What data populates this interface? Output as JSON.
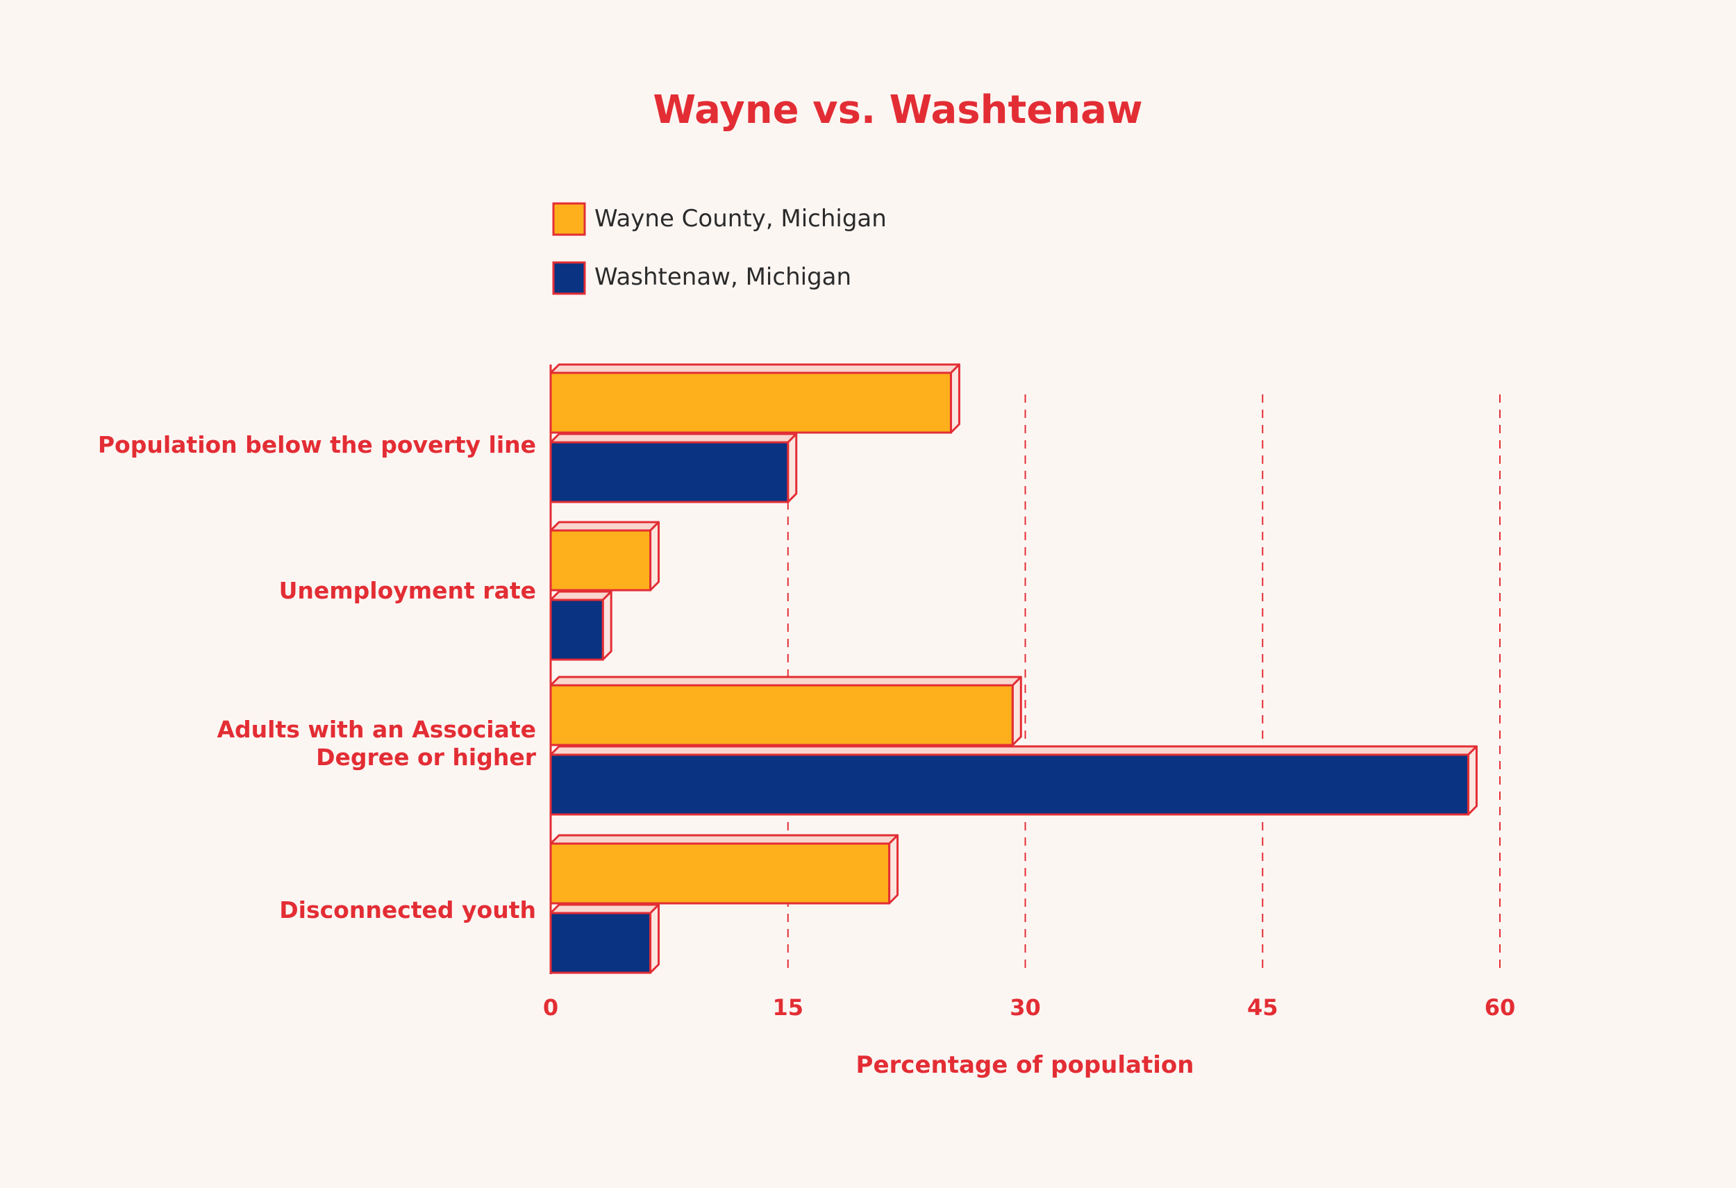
{
  "colors": {
    "background": "#fcf6f3",
    "accent": "#e32d34",
    "wayne": "#fdb01b",
    "washtenaw": "#0a3381",
    "bar_top": "#f9d7cf",
    "bar_side": "#fbe5df",
    "legend_text": "#2b2b2b"
  },
  "chart_data": {
    "type": "bar",
    "orientation": "horizontal",
    "title": "Wayne vs. Washtenaw",
    "xlabel": "Percentage of population",
    "ylabel": "",
    "xlim": [
      0,
      60
    ],
    "xticks": [
      0,
      15,
      30,
      45,
      60
    ],
    "grid": "vertical dashed",
    "legend_position": "top-left",
    "categories": [
      [
        "Population below the poverty line"
      ],
      [
        "Unemployment rate"
      ],
      [
        "Adults with an Associate",
        "Degree or higher"
      ],
      [
        "Disconnected youth"
      ]
    ],
    "series": [
      {
        "name": "Wayne County, Michigan",
        "color": "#fdb01b",
        "values": [
          25.3,
          6.3,
          29.2,
          21.4
        ]
      },
      {
        "name": "Washtenaw, Michigan",
        "color": "#0a3381",
        "values": [
          15.0,
          3.3,
          58.0,
          6.3
        ]
      }
    ]
  }
}
